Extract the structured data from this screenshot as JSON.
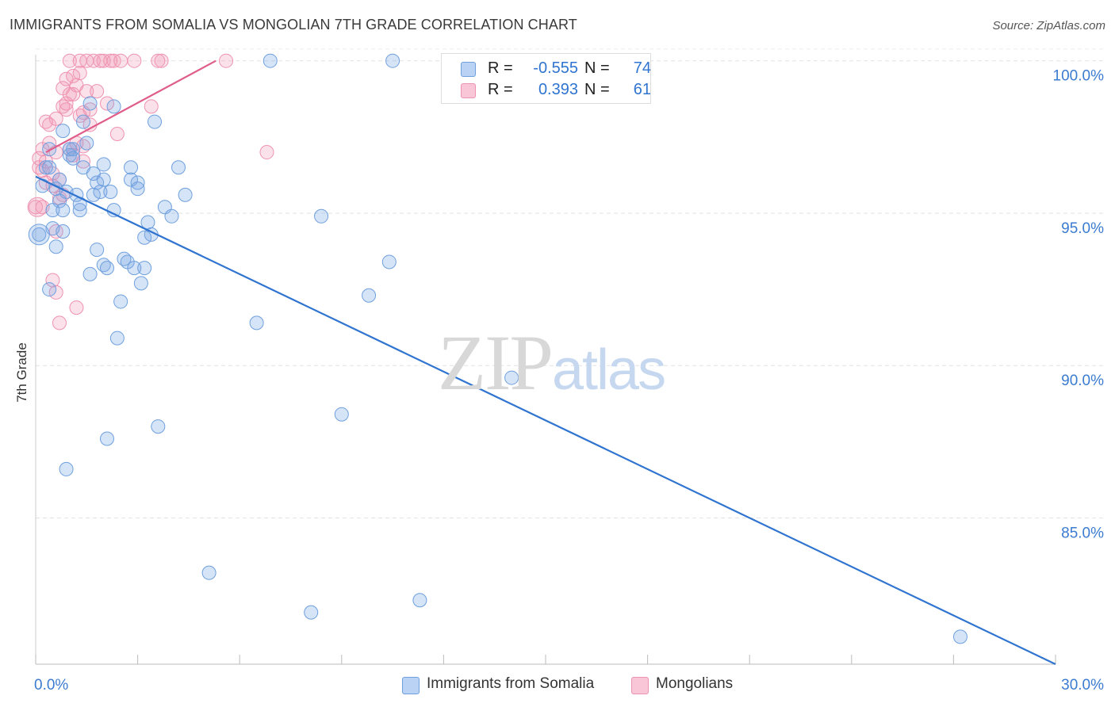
{
  "header": {
    "title": "IMMIGRANTS FROM SOMALIA VS MONGOLIAN 7TH GRADE CORRELATION CHART",
    "source": "Source: ZipAtlas.com"
  },
  "watermark": {
    "zip": "ZIP",
    "atlas": "atlas"
  },
  "stats": {
    "somalia": {
      "r_label": "R =",
      "r": "-0.555",
      "n_label": "N =",
      "n": "74"
    },
    "mongolian": {
      "r_label": "R =",
      "r": "0.393",
      "n_label": "N =",
      "n": "61"
    }
  },
  "legend": {
    "somalia": "Immigrants from Somalia",
    "mongolian": "Mongolians"
  },
  "chart_data": {
    "type": "scatter",
    "title": "IMMIGRANTS FROM SOMALIA VS MONGOLIAN 7TH GRADE CORRELATION CHART",
    "xlabel": "",
    "ylabel": "7th Grade",
    "xlim": [
      0,
      30
    ],
    "ylim": [
      80.2,
      100.2
    ],
    "x_tick_labels": [
      "0.0%",
      "30.0%"
    ],
    "y_ticks": [
      85,
      90,
      95,
      100
    ],
    "y_tick_labels": [
      "85.0%",
      "90.0%",
      "95.0%",
      "100.0%"
    ],
    "grid": true,
    "legend_position": "bottom",
    "colors": {
      "somalia": "#6fa0de",
      "somalia_line": "#2f74d0",
      "mongolian": "#ef92b0",
      "mongolian_line": "#e05c8a"
    },
    "series": [
      {
        "name": "Immigrants from Somalia",
        "trend": {
          "x": [
            0,
            30
          ],
          "y": [
            96.2,
            80.2
          ]
        },
        "points": [
          [
            0.1,
            94.3
          ],
          [
            0.2,
            95.9
          ],
          [
            0.3,
            96.5
          ],
          [
            0.4,
            96.5
          ],
          [
            0.4,
            97.1
          ],
          [
            0.4,
            92.5
          ],
          [
            0.5,
            95.1
          ],
          [
            0.5,
            94.5
          ],
          [
            0.6,
            95.8
          ],
          [
            0.6,
            93.9
          ],
          [
            0.7,
            96.1
          ],
          [
            0.7,
            95.4
          ],
          [
            0.8,
            95.1
          ],
          [
            0.8,
            94.4
          ],
          [
            0.8,
            97.7
          ],
          [
            0.9,
            95.7
          ],
          [
            1.0,
            97.1
          ],
          [
            1.0,
            96.9
          ],
          [
            1.1,
            97.1
          ],
          [
            1.1,
            96.8
          ],
          [
            1.2,
            95.6
          ],
          [
            1.3,
            95.1
          ],
          [
            1.3,
            95.3
          ],
          [
            1.4,
            96.5
          ],
          [
            1.4,
            98.0
          ],
          [
            1.5,
            97.3
          ],
          [
            1.6,
            93.0
          ],
          [
            1.6,
            98.6
          ],
          [
            1.7,
            95.6
          ],
          [
            1.8,
            96.0
          ],
          [
            1.8,
            93.8
          ],
          [
            1.9,
            95.7
          ],
          [
            2.0,
            96.6
          ],
          [
            2.0,
            93.3
          ],
          [
            2.1,
            93.2
          ],
          [
            2.2,
            95.7
          ],
          [
            2.3,
            95.1
          ],
          [
            2.3,
            98.5
          ],
          [
            2.4,
            90.9
          ],
          [
            2.5,
            92.1
          ],
          [
            2.6,
            93.5
          ],
          [
            2.7,
            93.4
          ],
          [
            2.8,
            96.5
          ],
          [
            2.8,
            96.1
          ],
          [
            2.9,
            93.2
          ],
          [
            3.0,
            96.0
          ],
          [
            3.0,
            95.8
          ],
          [
            3.1,
            92.7
          ],
          [
            3.2,
            93.2
          ],
          [
            3.3,
            94.7
          ],
          [
            3.4,
            94.3
          ],
          [
            3.5,
            98.0
          ],
          [
            3.6,
            88.0
          ],
          [
            3.8,
            95.2
          ],
          [
            4.2,
            96.5
          ],
          [
            4.4,
            95.6
          ],
          [
            5.1,
            83.2
          ],
          [
            6.5,
            91.4
          ],
          [
            6.9,
            100.0
          ],
          [
            8.1,
            81.9
          ],
          [
            8.4,
            94.9
          ],
          [
            9.0,
            88.4
          ],
          [
            9.8,
            92.3
          ],
          [
            10.4,
            93.4
          ],
          [
            10.5,
            100.0
          ],
          [
            11.3,
            82.3
          ],
          [
            14.0,
            89.6
          ],
          [
            27.2,
            81.1
          ],
          [
            2.0,
            96.1
          ],
          [
            3.2,
            94.2
          ],
          [
            1.7,
            96.3
          ],
          [
            0.9,
            86.6
          ],
          [
            2.1,
            87.6
          ],
          [
            4.0,
            94.9
          ]
        ]
      },
      {
        "name": "Mongolians",
        "trend": {
          "x": [
            0.3,
            5.3
          ],
          "y": [
            97.0,
            100.0
          ]
        },
        "points": [
          [
            0.0,
            95.2
          ],
          [
            0.1,
            96.5
          ],
          [
            0.1,
            96.8
          ],
          [
            0.2,
            97.1
          ],
          [
            0.2,
            96.4
          ],
          [
            0.3,
            98.0
          ],
          [
            0.3,
            96.7
          ],
          [
            0.4,
            97.9
          ],
          [
            0.4,
            97.3
          ],
          [
            0.5,
            92.8
          ],
          [
            0.5,
            95.9
          ],
          [
            0.6,
            92.4
          ],
          [
            0.6,
            94.4
          ],
          [
            0.6,
            98.1
          ],
          [
            0.7,
            91.4
          ],
          [
            0.7,
            96.1
          ],
          [
            0.8,
            98.5
          ],
          [
            0.8,
            95.6
          ],
          [
            0.8,
            99.1
          ],
          [
            0.9,
            99.4
          ],
          [
            0.9,
            98.4
          ],
          [
            0.9,
            98.6
          ],
          [
            1.0,
            97.1
          ],
          [
            1.0,
            100.0
          ],
          [
            1.1,
            99.5
          ],
          [
            1.1,
            98.9
          ],
          [
            1.1,
            96.9
          ],
          [
            1.2,
            97.3
          ],
          [
            1.2,
            99.2
          ],
          [
            1.2,
            91.9
          ],
          [
            1.3,
            100.0
          ],
          [
            1.3,
            99.6
          ],
          [
            1.3,
            98.2
          ],
          [
            1.4,
            97.2
          ],
          [
            1.4,
            96.7
          ],
          [
            1.5,
            99.0
          ],
          [
            1.5,
            100.0
          ],
          [
            1.6,
            97.9
          ],
          [
            1.6,
            98.4
          ],
          [
            1.7,
            100.0
          ],
          [
            1.8,
            99.0
          ],
          [
            2.0,
            100.0
          ],
          [
            2.1,
            98.6
          ],
          [
            2.2,
            100.0
          ],
          [
            2.3,
            100.0
          ],
          [
            2.4,
            97.6
          ],
          [
            2.5,
            100.0
          ],
          [
            3.4,
            98.5
          ],
          [
            3.6,
            100.0
          ],
          [
            3.7,
            100.0
          ],
          [
            5.6,
            100.0
          ],
          [
            6.8,
            97.0
          ],
          [
            0.2,
            95.2
          ],
          [
            0.5,
            96.3
          ],
          [
            0.7,
            95.5
          ],
          [
            1.9,
            100.0
          ],
          [
            2.9,
            100.0
          ],
          [
            1.0,
            98.9
          ],
          [
            1.4,
            98.3
          ],
          [
            0.3,
            96.0
          ],
          [
            0.6,
            97.0
          ]
        ]
      }
    ]
  }
}
